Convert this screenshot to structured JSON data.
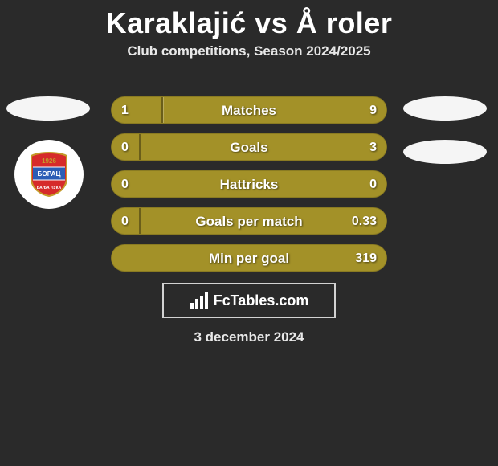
{
  "header": {
    "title": "Karaklajić vs Å roler",
    "subtitle": "Club competitions, Season 2024/2025"
  },
  "colors": {
    "olive": "#a39128",
    "olive_dark": "#8e7e1f",
    "dark_panel": "#2a2a2a",
    "crest_red": "#d62a2a",
    "crest_blue": "#2b5db5",
    "crest_gold": "#c59a2a",
    "placeholder": "#f5f5f5"
  },
  "left_player": {
    "crest_top_text": "1926",
    "crest_mid_text": "БОРАЦ",
    "crest_bottom_text": "БАЊА ЛУКА"
  },
  "bars": [
    {
      "label": "Matches",
      "left": "1",
      "right": "9",
      "left_pct": 18,
      "right_pct": 82,
      "left_color": "#a39128",
      "right_color": "#a39128",
      "divider": true
    },
    {
      "label": "Goals",
      "left": "0",
      "right": "3",
      "left_pct": 10,
      "right_pct": 90,
      "left_color": "#a39128",
      "right_color": "#a39128",
      "divider": true
    },
    {
      "label": "Hattricks",
      "left": "0",
      "right": "0",
      "left_pct": 50,
      "right_pct": 50,
      "left_color": "#a39128",
      "right_color": "#a39128",
      "divider": false
    },
    {
      "label": "Goals per match",
      "left": "0",
      "right": "0.33",
      "left_pct": 10,
      "right_pct": 90,
      "left_color": "#a39128",
      "right_color": "#a39128",
      "divider": true
    },
    {
      "label": "Min per goal",
      "left": "",
      "right": "319",
      "left_pct": 0,
      "right_pct": 100,
      "left_color": "#a39128",
      "right_color": "#a39128",
      "divider": false
    }
  ],
  "footer": {
    "site": "FcTables.com",
    "date": "3 december 2024"
  }
}
